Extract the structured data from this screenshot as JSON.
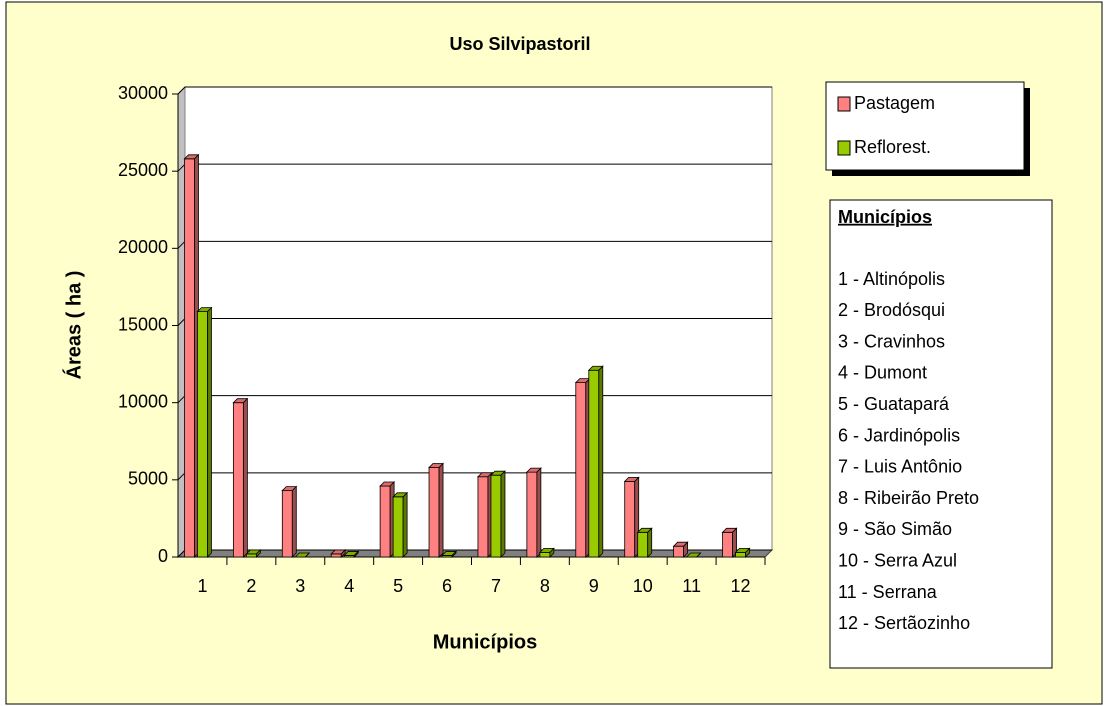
{
  "chart_data": {
    "type": "bar3d",
    "title": "Uso Silvipastoril",
    "x_label": "Municípios",
    "y_label": "Áreas ( ha )",
    "categories": [
      "1",
      "2",
      "3",
      "4",
      "5",
      "6",
      "7",
      "8",
      "9",
      "10",
      "11",
      "12"
    ],
    "series": [
      {
        "name": "Pastagem",
        "color": "#ff8080",
        "values": [
          25800,
          10000,
          4300,
          200,
          4600,
          5800,
          5200,
          5500,
          11300,
          4900,
          700,
          1600
        ]
      },
      {
        "name": "Reflorest.",
        "color": "#99cc00",
        "values": [
          15900,
          200,
          0,
          100,
          3900,
          100,
          5300,
          300,
          12100,
          1600,
          0,
          300
        ]
      }
    ],
    "ylim": [
      0,
      30000
    ],
    "yticks": [
      0,
      5000,
      10000,
      15000,
      20000,
      25000,
      30000
    ],
    "grid": true,
    "key": {
      "title": "Municípios",
      "items": [
        "1 - Altinópolis",
        "2 - Brodósqui",
        "3 - Cravinhos",
        "4 - Dumont",
        "5 - Guatapará",
        "6 - Jardinópolis",
        "7 - Luis Antônio",
        "8 - Ribeirão Preto",
        "9 - São Simão",
        "10 - Serra Azul",
        "11 - Serrana",
        "12 - Sertãozinho"
      ]
    }
  }
}
